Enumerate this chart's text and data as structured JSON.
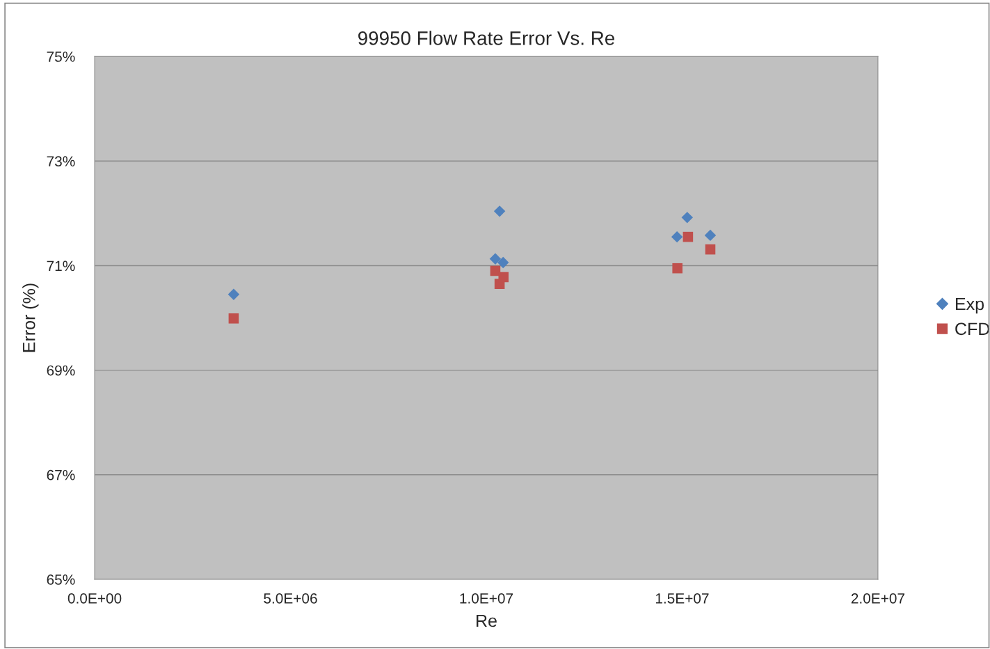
{
  "chart_data": {
    "type": "scatter",
    "title": "99950 Flow Rate Error Vs. Re",
    "xlabel": "Re",
    "ylabel": "Error (%)",
    "xlim": [
      0,
      20000000
    ],
    "xticks": [
      {
        "value": 0,
        "label": "0.0E+00"
      },
      {
        "value": 5000000,
        "label": "5.0E+06"
      },
      {
        "value": 10000000,
        "label": "1.0E+07"
      },
      {
        "value": 15000000,
        "label": "1.5E+07"
      },
      {
        "value": 20000000,
        "label": "2.0E+07"
      }
    ],
    "ylim": [
      65,
      75
    ],
    "yticks": [
      {
        "value": 65,
        "label": "65%"
      },
      {
        "value": 67,
        "label": "67%"
      },
      {
        "value": 69,
        "label": "69%"
      },
      {
        "value": 71,
        "label": "71%"
      },
      {
        "value": 73,
        "label": "73%"
      },
      {
        "value": 75,
        "label": "75%"
      }
    ],
    "grid": "y",
    "legend": "right",
    "series": [
      {
        "name": "Exp",
        "color": "#4f81bd",
        "marker": "diamond",
        "x": [
          3550000,
          10340000,
          10230000,
          10430000,
          14870000,
          15130000,
          15720000
        ],
        "values": [
          70.45,
          72.04,
          71.13,
          71.06,
          71.55,
          71.92,
          71.58
        ]
      },
      {
        "name": "CFD",
        "color": "#c0504d",
        "marker": "square",
        "x": [
          3550000,
          10230000,
          10340000,
          10440000,
          14880000,
          15150000,
          15720000
        ],
        "values": [
          69.99,
          70.9,
          70.65,
          70.78,
          70.95,
          71.55,
          71.31
        ]
      }
    ]
  }
}
